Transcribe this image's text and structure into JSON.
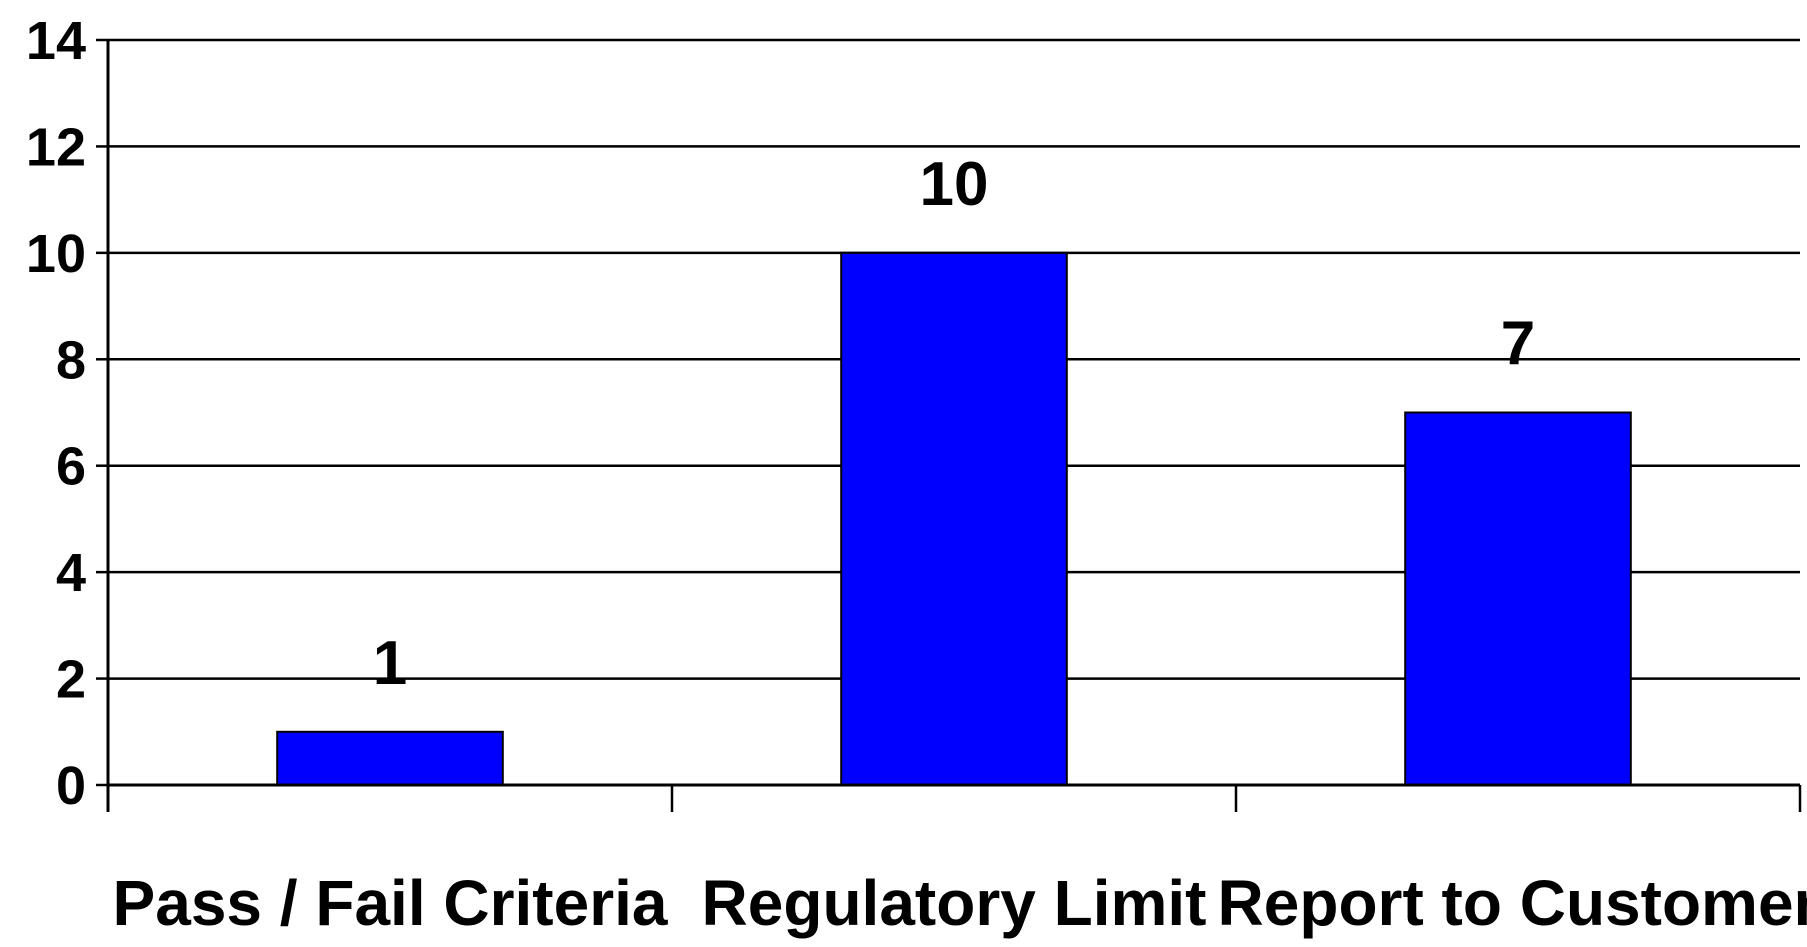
{
  "chart_data": {
    "type": "bar",
    "title": "",
    "xlabel": "",
    "ylabel": "",
    "categories": [
      "Pass / Fail Criteria",
      "Regulatory Limit",
      "Report to Customer"
    ],
    "values": [
      1,
      10,
      7
    ],
    "data_labels": [
      "1",
      "10",
      "7"
    ],
    "ylim": [
      0,
      14
    ],
    "yticks": [
      0,
      2,
      4,
      6,
      8,
      10,
      12,
      14
    ],
    "ytick_labels": [
      "0",
      "2",
      "4",
      "6",
      "8",
      "10",
      "12",
      "14"
    ],
    "grid": true,
    "legend": "none",
    "bar_color": "#0000FF",
    "bar_edge_color": "#000000"
  }
}
